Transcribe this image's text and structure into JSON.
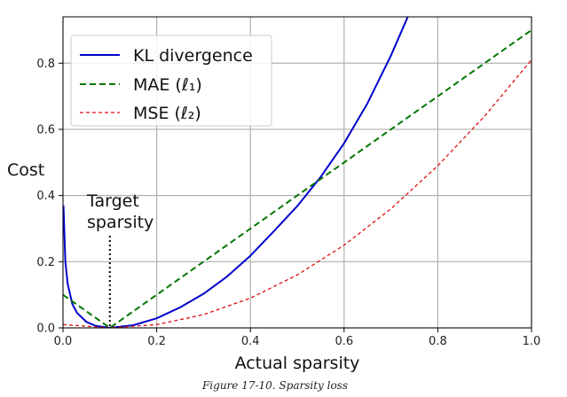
{
  "chart_data": {
    "type": "line",
    "xlabel": "Actual sparsity",
    "ylabel": "Cost",
    "xlim": [
      0.0,
      1.0
    ],
    "ylim": [
      0.0,
      0.94
    ],
    "xticks": [
      "0.0",
      "0.2",
      "0.4",
      "0.6",
      "0.8",
      "1.0"
    ],
    "yticks": [
      "0.0",
      "0.2",
      "0.4",
      "0.6",
      "0.8"
    ],
    "grid": true,
    "legend_position": "top-left",
    "annotation": {
      "line1": "Target",
      "line2": "sparsity",
      "x": 0.1
    },
    "target_sparsity": 0.1,
    "series": [
      {
        "name": "KL divergence",
        "color": "#0000cc",
        "style": "solid",
        "x": [
          0.001,
          0.005,
          0.01,
          0.02,
          0.03,
          0.05,
          0.07,
          0.1,
          0.15,
          0.2,
          0.25,
          0.3,
          0.35,
          0.4,
          0.45,
          0.5,
          0.55,
          0.6,
          0.65,
          0.7,
          0.75
        ],
        "y": [
          0.37,
          0.2,
          0.133,
          0.072,
          0.045,
          0.018,
          0.006,
          0.0,
          0.008,
          0.029,
          0.062,
          0.103,
          0.155,
          0.218,
          0.292,
          0.368,
          0.456,
          0.558,
          0.679,
          0.823,
          0.986
        ]
      },
      {
        "name": "MAE (ℓ₁)",
        "color": "#007700",
        "style": "dashed",
        "x": [
          0.0,
          0.1,
          1.0
        ],
        "y": [
          0.1,
          0.0,
          0.9
        ]
      },
      {
        "name": "MSE (ℓ₂)",
        "color": "#dd1111",
        "style": "dashed-fine",
        "x": [
          0.0,
          0.1,
          0.2,
          0.3,
          0.4,
          0.5,
          0.6,
          0.7,
          0.8,
          0.9,
          1.0
        ],
        "y": [
          0.01,
          0.0,
          0.01,
          0.04,
          0.09,
          0.16,
          0.25,
          0.36,
          0.49,
          0.64,
          0.81
        ]
      }
    ]
  },
  "caption": "Figure 17-10. Sparsity loss"
}
